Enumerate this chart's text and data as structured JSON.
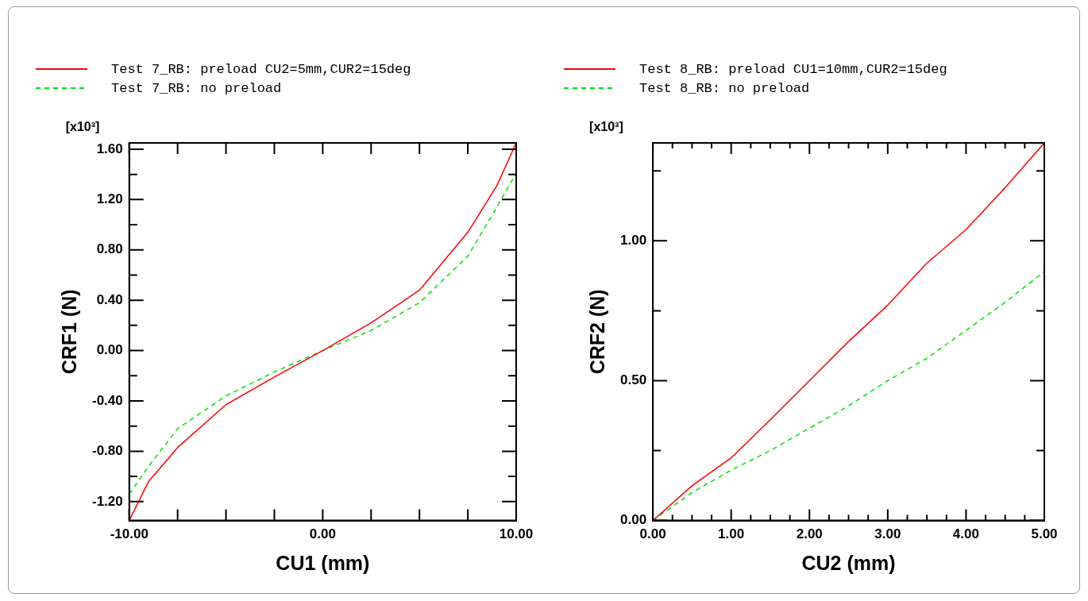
{
  "chart_data": [
    {
      "type": "line",
      "xlabel": "CU1 (mm)",
      "ylabel": "CRF1 (N)",
      "annotations": [
        "[x10³]"
      ],
      "legend": "top",
      "grid": false,
      "marker": "none",
      "xlim": [
        -10,
        10
      ],
      "ylim": [
        -1.35,
        1.65
      ],
      "xticks": [
        {
          "value": -10,
          "label": "-10.00"
        },
        {
          "value": -7.5,
          "label": null
        },
        {
          "value": -5,
          "label": null
        },
        {
          "value": -2.5,
          "label": null
        },
        {
          "value": 0,
          "label": "0.00"
        },
        {
          "value": 2.5,
          "label": null
        },
        {
          "value": 5,
          "label": null
        },
        {
          "value": 7.5,
          "label": null
        },
        {
          "value": 10,
          "label": "10.00"
        }
      ],
      "yticks": [
        {
          "value": -1.2,
          "label": "-1.20"
        },
        {
          "value": -1.0,
          "label": null
        },
        {
          "value": -0.8,
          "label": "-0.80"
        },
        {
          "value": -0.6,
          "label": null
        },
        {
          "value": -0.4,
          "label": "-0.40"
        },
        {
          "value": -0.2,
          "label": null
        },
        {
          "value": 0,
          "label": "0.00"
        },
        {
          "value": 0.2,
          "label": null
        },
        {
          "value": 0.4,
          "label": "0.40"
        },
        {
          "value": 0.6,
          "label": null
        },
        {
          "value": 0.8,
          "label": "0.80"
        },
        {
          "value": 1.0,
          "label": null
        },
        {
          "value": 1.2,
          "label": "1.20"
        },
        {
          "value": 1.4,
          "label": null
        },
        {
          "value": 1.6,
          "label": "1.60"
        }
      ],
      "series": [
        {
          "name": "Test 7_RB: preload CU2=5mm,CUR2=15deg",
          "color": "#ff0000",
          "line_style": "solid",
          "x": [
            -10,
            -9,
            -7.5,
            -5,
            -2.5,
            0,
            2.5,
            5,
            7.5,
            9,
            10
          ],
          "values": [
            -1.35,
            -1.04,
            -0.77,
            -0.43,
            -0.21,
            0,
            0.22,
            0.48,
            0.94,
            1.31,
            1.65
          ]
        },
        {
          "name": "Test 7_RB: no preload",
          "color": "#00e000",
          "line_style": "dashed",
          "x": [
            -10,
            -9,
            -7.5,
            -5,
            -2.5,
            0,
            2.5,
            5,
            7.5,
            9,
            10
          ],
          "values": [
            -1.14,
            -0.92,
            -0.62,
            -0.36,
            -0.17,
            0,
            0.16,
            0.38,
            0.75,
            1.14,
            1.41
          ]
        }
      ]
    },
    {
      "type": "line",
      "xlabel": "CU2 (mm)",
      "ylabel": "CRF2 (N)",
      "annotations": [
        "[x10³]"
      ],
      "legend": "top",
      "grid": false,
      "marker": "none",
      "xlim": [
        0,
        5
      ],
      "ylim": [
        0,
        1.35
      ],
      "xticks": [
        {
          "value": 0,
          "label": "0.00"
        },
        {
          "value": 0.25,
          "label": null
        },
        {
          "value": 0.5,
          "label": null
        },
        {
          "value": 0.75,
          "label": null
        },
        {
          "value": 1,
          "label": "1.00"
        },
        {
          "value": 1.25,
          "label": null
        },
        {
          "value": 1.5,
          "label": null
        },
        {
          "value": 1.75,
          "label": null
        },
        {
          "value": 2,
          "label": "2.00"
        },
        {
          "value": 2.25,
          "label": null
        },
        {
          "value": 2.5,
          "label": null
        },
        {
          "value": 2.75,
          "label": null
        },
        {
          "value": 3,
          "label": "3.00"
        },
        {
          "value": 3.25,
          "label": null
        },
        {
          "value": 3.5,
          "label": null
        },
        {
          "value": 3.75,
          "label": null
        },
        {
          "value": 4,
          "label": "4.00"
        },
        {
          "value": 4.25,
          "label": null
        },
        {
          "value": 4.5,
          "label": null
        },
        {
          "value": 4.75,
          "label": null
        },
        {
          "value": 5,
          "label": "5.00"
        }
      ],
      "yticks": [
        {
          "value": 0,
          "label": "0.00"
        },
        {
          "value": 0.25,
          "label": null
        },
        {
          "value": 0.5,
          "label": "0.50"
        },
        {
          "value": 0.75,
          "label": null
        },
        {
          "value": 1,
          "label": "1.00"
        },
        {
          "value": 1.25,
          "label": null
        }
      ],
      "series": [
        {
          "name": "Test 8_RB: preload CU1=10mm,CUR2=15deg",
          "color": "#ff0000",
          "line_style": "solid",
          "x": [
            0,
            0.5,
            1,
            1.5,
            2,
            2.5,
            3,
            3.5,
            4,
            4.5,
            5
          ],
          "values": [
            0,
            0.124,
            0.224,
            0.36,
            0.5,
            0.64,
            0.77,
            0.92,
            1.04,
            1.19,
            1.35
          ]
        },
        {
          "name": "Test 8_RB: no preload",
          "color": "#00e000",
          "line_style": "dashed",
          "x": [
            0,
            0.5,
            1,
            1.5,
            2,
            2.5,
            3,
            3.5,
            4,
            4.5,
            5
          ],
          "values": [
            0,
            0.1,
            0.18,
            0.25,
            0.33,
            0.41,
            0.5,
            0.58,
            0.68,
            0.78,
            0.89
          ]
        }
      ]
    }
  ]
}
